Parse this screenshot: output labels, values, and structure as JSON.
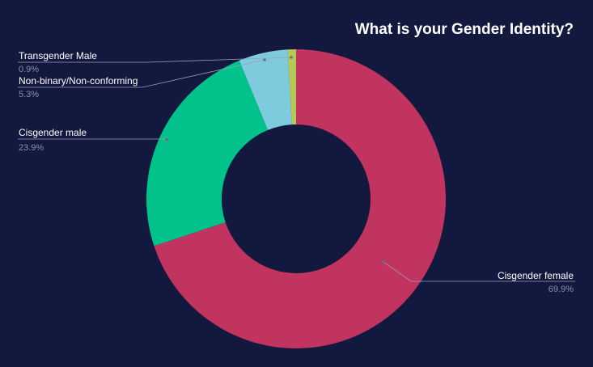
{
  "chart_data": {
    "type": "pie",
    "variant": "donut",
    "title": "What is your Gender Identity?",
    "slices": [
      {
        "label": "Cisgender female",
        "value": 69.9,
        "value_label": "69.9%",
        "color": "#c0345f"
      },
      {
        "label": "Cisgender male",
        "value": 23.9,
        "value_label": "23.9%",
        "color": "#00c28a"
      },
      {
        "label": "Non-binary/Non-conforming",
        "value": 5.3,
        "value_label": "5.3%",
        "color": "#7ecbde"
      },
      {
        "label": "Transgender Male",
        "value": 0.9,
        "value_label": "0.9%",
        "color": "#b5c956"
      }
    ],
    "start": "top",
    "direction": "clockwise"
  },
  "colors": {
    "background": "#12183e",
    "title": "#ffffff",
    "label": "#ffffff",
    "value_label": "#8c90a8",
    "leader_line": "#9aa0b8"
  }
}
